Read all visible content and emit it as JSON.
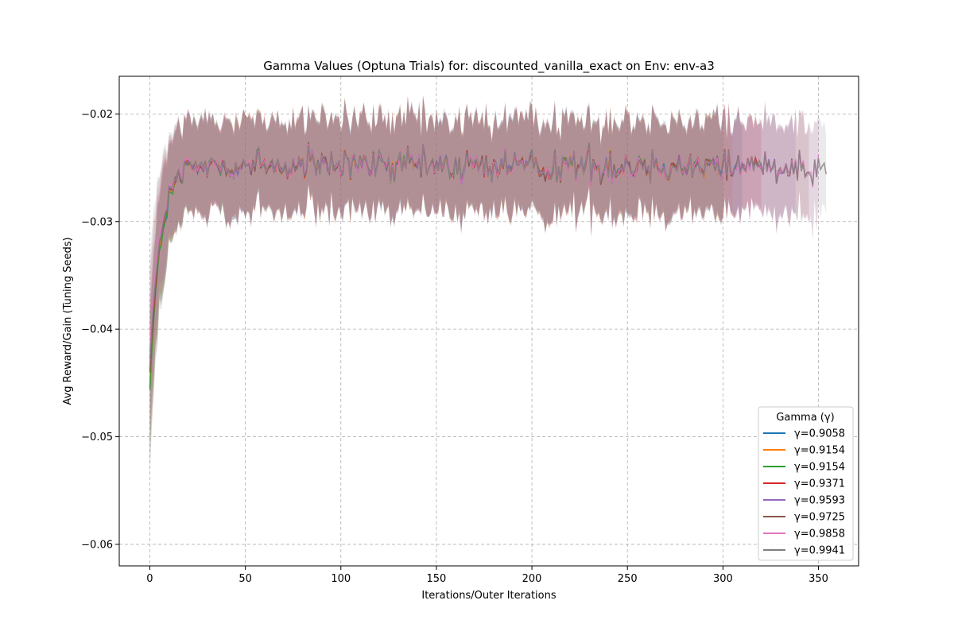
{
  "chart_data": {
    "type": "line",
    "title": "Gamma Values (Optuna Trials) for: discounted_vanilla_exact on Env: env-a3",
    "xlabel": "Iterations/Outer Iterations",
    "ylabel": "Avg Reward/Gain (Tuning Seeds)",
    "xlim": [
      -16,
      371
    ],
    "ylim": [
      -0.062,
      -0.0165
    ],
    "xticks": [
      0,
      50,
      100,
      150,
      200,
      250,
      300,
      350
    ],
    "xtick_labels": [
      "0",
      "50",
      "100",
      "150",
      "200",
      "250",
      "300",
      "350"
    ],
    "yticks": [
      -0.02,
      -0.03,
      -0.04,
      -0.05,
      -0.06
    ],
    "ytick_labels": [
      "−0.02",
      "−0.03",
      "−0.04",
      "−0.05",
      "−0.06"
    ],
    "grid": true,
    "legend": {
      "title": "Gamma (γ)",
      "placement": "lower right",
      "entries": [
        "γ=0.9058",
        "γ=0.9154",
        "γ=0.9154",
        "γ=0.9371",
        "γ=0.9593",
        "γ=0.9725",
        "γ=0.9858",
        "γ=0.9941"
      ]
    },
    "plateau_mean": -0.0248,
    "plateau_band_halfwidth": 0.0035,
    "series": [
      {
        "name": "γ=0.9058",
        "color": "#1f77b4",
        "x_end": 310,
        "start_y": -0.0455,
        "band_start": 0.006
      },
      {
        "name": "γ=0.9154",
        "color": "#ff7f0e",
        "x_end": 305,
        "start_y": -0.045,
        "band_start": 0.006
      },
      {
        "name": "γ=0.9154",
        "color": "#2ca02c",
        "x_end": 300,
        "start_y": -0.0458,
        "band_start": 0.006
      },
      {
        "name": "γ=0.9371",
        "color": "#d62728",
        "x_end": 320,
        "start_y": -0.0442,
        "band_start": 0.006
      },
      {
        "name": "γ=0.9593",
        "color": "#9467bd",
        "x_end": 338,
        "start_y": -0.043,
        "band_start": 0.005
      },
      {
        "name": "γ=0.9725",
        "color": "#8c564b",
        "x_end": 345,
        "start_y": -0.044,
        "band_start": 0.009
      },
      {
        "name": "γ=0.9858",
        "color": "#e377c2",
        "x_end": 350,
        "start_y": -0.0418,
        "band_start": 0.006
      },
      {
        "name": "γ=0.9941",
        "color": "#7f7f7f",
        "x_end": 354,
        "start_y": -0.0435,
        "band_start": 0.01
      }
    ]
  }
}
